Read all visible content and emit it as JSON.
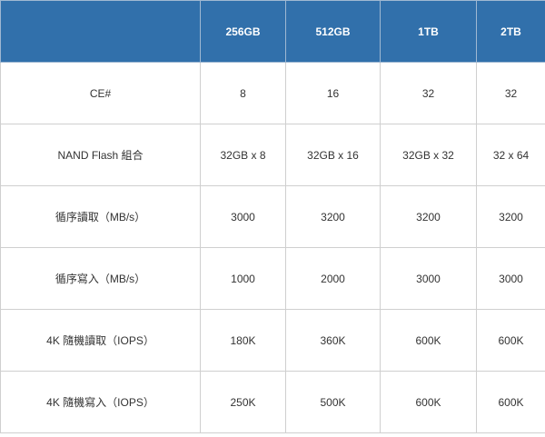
{
  "table": {
    "header": [
      "",
      "256GB",
      "512GB",
      "1TB",
      "2TB"
    ],
    "rows": [
      [
        "CE#",
        "8",
        "16",
        "32",
        "32"
      ],
      [
        "NAND Flash 組合",
        "32GB x 8",
        "32GB x 16",
        "32GB x 32",
        "32 x 64"
      ],
      [
        "循序讀取（MB/s）",
        "3000",
        "3200",
        "3200",
        "3200"
      ],
      [
        "循序寫入（MB/s）",
        "1000",
        "2000",
        "3000",
        "3000"
      ],
      [
        "4K 隨機讀取（IOPS）",
        "180K",
        "360K",
        "600K",
        "600K"
      ],
      [
        "4K 隨機寫入（IOPS）",
        "250K",
        "500K",
        "600K",
        "600K"
      ]
    ]
  },
  "colors": {
    "header_bg": "#3170ab",
    "header_text": "#ffffff",
    "border": "#cfcfcf",
    "body_text": "#333333"
  }
}
